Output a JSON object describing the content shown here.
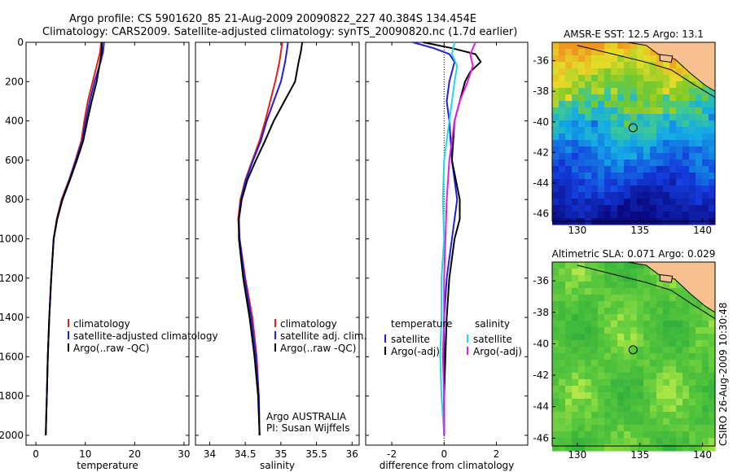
{
  "header": {
    "line1": "Argo profile: CS 5901620_85 21-Aug-2009 20090822_227 40.384S 134.454E",
    "line2": "Climatology: CARS2009. Satellite-adjusted climatology: synTS_20090820.nc (1.7d earlier)"
  },
  "side_label": "CSIRO 26-Aug-2009 10:30:48",
  "colors": {
    "climatology": "#e02020",
    "satellite": "#1f1fd6",
    "argo": "#000000",
    "sat_salinity": "#21d8e8",
    "argo_salinity_diff": "#e020e0"
  },
  "chart_data": [
    {
      "type": "line",
      "name": "temperature-profile",
      "xlabel": "temperature",
      "ylabel": "",
      "xlim": [
        -2,
        31
      ],
      "ylim": [
        2050,
        0
      ],
      "xticks": [
        0,
        10,
        20,
        30
      ],
      "yticks": [
        0,
        200,
        400,
        600,
        800,
        1000,
        1200,
        1400,
        1600,
        1800,
        2000
      ],
      "legend": [
        "climatology",
        "satellite-adjusted climatology",
        "Argo(..raw -QC)"
      ],
      "series": [
        {
          "name": "climatology",
          "color": "#e02020",
          "x": [
            13.2,
            13.0,
            12.5,
            11.5,
            10.5,
            9.8,
            9.2,
            8.0,
            6.7,
            5.2,
            4.2,
            3.6,
            3.1,
            2.7,
            2.4,
            2.2,
            2.1,
            2.0
          ],
          "y": [
            0,
            50,
            100,
            200,
            300,
            400,
            500,
            600,
            700,
            800,
            900,
            1000,
            1200,
            1400,
            1600,
            1800,
            1900,
            2000
          ]
        },
        {
          "name": "satellite-adjusted climatology",
          "color": "#1f1fd6",
          "x": [
            13.8,
            13.6,
            13.1,
            11.9,
            10.9,
            10.1,
            9.4,
            8.1,
            6.8,
            5.3,
            4.3,
            3.6,
            3.1,
            2.7,
            2.4,
            2.2,
            2.1,
            2.0
          ],
          "y": [
            0,
            50,
            100,
            200,
            300,
            400,
            500,
            600,
            700,
            800,
            900,
            1000,
            1200,
            1400,
            1600,
            1800,
            1900,
            2000
          ]
        },
        {
          "name": "Argo(..raw -QC)",
          "color": "#000000",
          "x": [
            13.4,
            13.3,
            13.0,
            12.3,
            11.3,
            10.4,
            9.6,
            8.3,
            6.9,
            5.4,
            4.3,
            3.6,
            3.1,
            2.7,
            2.4,
            2.2,
            2.1,
            2.0
          ],
          "y": [
            0,
            50,
            100,
            200,
            300,
            400,
            500,
            600,
            700,
            800,
            900,
            1000,
            1200,
            1400,
            1600,
            1800,
            1900,
            2000
          ]
        }
      ]
    },
    {
      "type": "line",
      "name": "salinity-profile",
      "xlabel": "salinity",
      "xlim": [
        33.8,
        36.1
      ],
      "ylim": [
        2050,
        0
      ],
      "xticks": [
        34,
        34.5,
        35,
        35.5,
        36
      ],
      "legend": [
        "climatology",
        "satellite adj. clim.",
        "Argo(..raw -QC)"
      ],
      "annotation": [
        "Argo AUSTRALIA",
        "PI: Susan Wijffels"
      ],
      "series": [
        {
          "name": "climatology",
          "color": "#e02020",
          "x": [
            35.02,
            35.0,
            34.98,
            34.92,
            34.85,
            34.78,
            34.7,
            34.6,
            34.5,
            34.43,
            34.4,
            34.42,
            34.5,
            34.6,
            34.66,
            34.69,
            34.7
          ],
          "y": [
            0,
            50,
            100,
            200,
            300,
            400,
            500,
            600,
            700,
            800,
            900,
            1000,
            1200,
            1400,
            1600,
            1800,
            2000
          ]
        },
        {
          "name": "satellite adj. clim.",
          "color": "#1f1fd6",
          "x": [
            35.1,
            35.08,
            35.06,
            35.0,
            34.9,
            34.8,
            34.72,
            34.61,
            34.51,
            34.44,
            34.41,
            34.42,
            34.49,
            34.58,
            34.65,
            34.69,
            34.7
          ],
          "y": [
            0,
            50,
            100,
            200,
            300,
            400,
            500,
            600,
            700,
            800,
            900,
            1000,
            1200,
            1400,
            1600,
            1800,
            2000
          ]
        },
        {
          "name": "Argo(..raw -QC)",
          "color": "#000000",
          "x": [
            35.3,
            35.28,
            35.25,
            35.2,
            35.05,
            34.9,
            34.78,
            34.65,
            34.53,
            34.45,
            34.41,
            34.41,
            34.47,
            34.56,
            34.63,
            34.68,
            34.7
          ],
          "y": [
            0,
            50,
            100,
            200,
            300,
            400,
            500,
            600,
            700,
            800,
            900,
            1000,
            1200,
            1400,
            1600,
            1800,
            2000
          ]
        }
      ]
    },
    {
      "type": "line",
      "name": "difference-profile",
      "xlabel": "difference from climatology",
      "xlim": [
        -3,
        3.2
      ],
      "ylim": [
        2050,
        0
      ],
      "xticks": [
        -2,
        0,
        2
      ],
      "legend_temperature": [
        "temperature",
        "satellite",
        "Argo(-adj)"
      ],
      "legend_salinity": [
        "salinity",
        "satellite",
        "Argo(-adj)"
      ],
      "series": [
        {
          "name": "temperature satellite",
          "color": "#1f1fd6",
          "x": [
            -1.2,
            -0.4,
            0.2,
            0.4,
            0.3,
            0.2,
            0.1,
            0.2,
            0.3,
            0.5,
            0.4,
            0.3,
            0.1,
            0.0,
            0.0,
            0.0,
            0.0,
            0.0
          ],
          "y": [
            0,
            30,
            60,
            100,
            150,
            200,
            300,
            400,
            600,
            800,
            900,
            1000,
            1200,
            1400,
            1600,
            1800,
            1900,
            2000
          ]
        },
        {
          "name": "temperature Argo(-adj)",
          "color": "#000000",
          "x": [
            -0.8,
            0.3,
            1.2,
            1.4,
            1.0,
            0.8,
            0.6,
            0.4,
            0.3,
            0.6,
            0.6,
            0.4,
            0.2,
            0.1,
            0.05,
            0.0,
            0.0,
            0.0
          ],
          "y": [
            0,
            30,
            60,
            100,
            150,
            200,
            300,
            400,
            600,
            800,
            900,
            1000,
            1200,
            1400,
            1600,
            1800,
            1900,
            2000
          ]
        },
        {
          "name": "salinity satellite",
          "color": "#21d8e8",
          "x": [
            0.4,
            0.3,
            0.5,
            0.4,
            0.3,
            0.2,
            0.1,
            0.0,
            -0.05,
            0.0,
            -0.1,
            -0.1,
            -0.15,
            -0.1,
            0.0
          ],
          "y": [
            0,
            60,
            120,
            200,
            300,
            400,
            500,
            600,
            800,
            1000,
            1200,
            1400,
            1600,
            1800,
            2000
          ]
        },
        {
          "name": "salinity Argo(-adj)",
          "color": "#e020e0",
          "x": [
            1.2,
            1.0,
            1.1,
            0.9,
            0.6,
            0.4,
            0.3,
            0.2,
            0.1,
            0.05,
            0.0,
            0.0,
            -0.05,
            0.0,
            0.0
          ],
          "y": [
            0,
            60,
            120,
            200,
            300,
            400,
            500,
            600,
            800,
            1000,
            1200,
            1400,
            1600,
            1800,
            2000
          ]
        }
      ]
    },
    {
      "type": "heatmap",
      "name": "sst-map",
      "title": "AMSR-E SST: 12.5 Argo: 13.1",
      "xlim": [
        128,
        141
      ],
      "ylim": [
        -46.5,
        -34.8
      ],
      "xticks": [
        130,
        135,
        140
      ],
      "yticks": [
        -36,
        -38,
        -40,
        -42,
        -44,
        -46
      ],
      "marker": {
        "lon": 134.454,
        "lat": -40.384
      }
    },
    {
      "type": "heatmap",
      "name": "sla-map",
      "title": "Altimetric SLA: 0.071 Argo: 0.029",
      "xlim": [
        128,
        141
      ],
      "ylim": [
        -46.5,
        -34.8
      ],
      "xticks": [
        130,
        135,
        140
      ],
      "yticks": [
        -36,
        -38,
        -40,
        -42,
        -44,
        -46
      ],
      "marker": {
        "lon": 134.454,
        "lat": -40.384
      }
    }
  ]
}
